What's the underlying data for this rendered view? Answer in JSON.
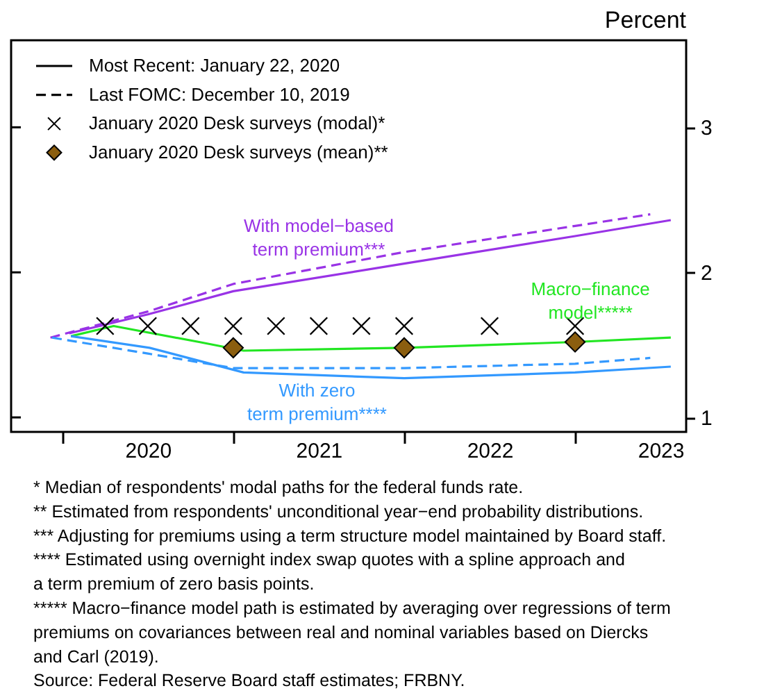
{
  "chart_data": {
    "type": "line",
    "ylabel": "Percent",
    "xlim": [
      2019.7,
      2023.65
    ],
    "xticks": [
      {
        "value": 2020,
        "label": null
      },
      {
        "value": 2020.5,
        "label": "2020"
      },
      {
        "value": 2021,
        "label": null
      },
      {
        "value": 2021.5,
        "label": "2021"
      },
      {
        "value": 2022,
        "label": null
      },
      {
        "value": 2022.5,
        "label": "2022"
      },
      {
        "value": 2023,
        "label": null
      },
      {
        "value": 2023.5,
        "label": "2023"
      }
    ],
    "ylim": [
      0.9,
      3.6
    ],
    "yticks": [
      1,
      2,
      3
    ],
    "grid": false,
    "legend": "top left",
    "series": [
      {
        "color": "#9933e6",
        "line_style": "solid",
        "x": [
          2020.04,
          2020.5,
          2021.0,
          2022.0,
          2023.0,
          2023.56
        ],
        "values": [
          1.58,
          1.71,
          1.87,
          2.06,
          2.25,
          2.36
        ]
      },
      {
        "color": "#9933e6",
        "line_style": "dashed",
        "x": [
          2019.93,
          2020.5,
          2021.0,
          2022.0,
          2023.0,
          2023.44
        ],
        "values": [
          1.55,
          1.73,
          1.92,
          2.14,
          2.32,
          2.4
        ]
      },
      {
        "color": "#22e622",
        "line_style": "solid",
        "x": [
          2020.05,
          2020.3,
          2020.8,
          2021.06,
          2022.0,
          2023.0,
          2023.56
        ],
        "values": [
          1.56,
          1.63,
          1.52,
          1.46,
          1.48,
          1.52,
          1.55
        ]
      },
      {
        "color": "#3399ff",
        "line_style": "solid",
        "x": [
          2020.05,
          2020.51,
          2021.06,
          2022.0,
          2023.0,
          2023.56
        ],
        "values": [
          1.56,
          1.48,
          1.31,
          1.27,
          1.31,
          1.35
        ]
      },
      {
        "color": "#3399ff",
        "line_style": "dashed",
        "x": [
          2019.94,
          2020.5,
          2021.0,
          2022.0,
          2023.0,
          2023.44
        ],
        "values": [
          1.55,
          1.44,
          1.34,
          1.34,
          1.37,
          1.41
        ]
      },
      {
        "type": "scatter",
        "name": "January 2020 Desk surveys (modal)*",
        "color": "#000000",
        "marker": "cross",
        "x": [
          2020.25,
          2020.5,
          2020.75,
          2021.0,
          2021.25,
          2021.5,
          2021.75,
          2022.0,
          2022.5,
          2023.0
        ],
        "values": [
          1.63,
          1.63,
          1.63,
          1.63,
          1.63,
          1.63,
          1.63,
          1.63,
          1.63,
          1.63
        ]
      },
      {
        "type": "scatter",
        "name": "January 2020 Desk surveys (mean)**",
        "color": "#8b5e0f",
        "marker": "diamond",
        "x": [
          2021.0,
          2022.0,
          2023.0
        ],
        "values": [
          1.48,
          1.48,
          1.52
        ]
      }
    ],
    "annotations": [
      "Most Recent: January 22, 2020",
      "Last FOMC: December 10, 2019",
      {
        "text": "With model−based\nterm premium***",
        "x": 2021.5,
        "y": 1.965
      },
      {
        "text": "Macro−finance\nmodel*****",
        "x": 2023.09,
        "y": 1.525
      },
      {
        "text": "With zero\nterm premium****",
        "x": 2021.49,
        "y": 1.29
      },
      "* Median of respondents' modal paths for the federal funds rate.",
      "** Estimated from respondents' unconditional year−end probability distributions.",
      "*** Adjusting for premiums using a term structure model maintained by Board staff.",
      "**** Estimated using overnight index swap quotes with a spline approach and",
      "a term premium of zero basis points.",
      "***** Macro−finance model path is estimated by averaging over regressions of term",
      "premiums on covariances between real and nominal variables based on Diercks",
      "and Carl (2019).",
      "Source: Federal Reserve Board staff estimates; FRBNY."
    ]
  }
}
